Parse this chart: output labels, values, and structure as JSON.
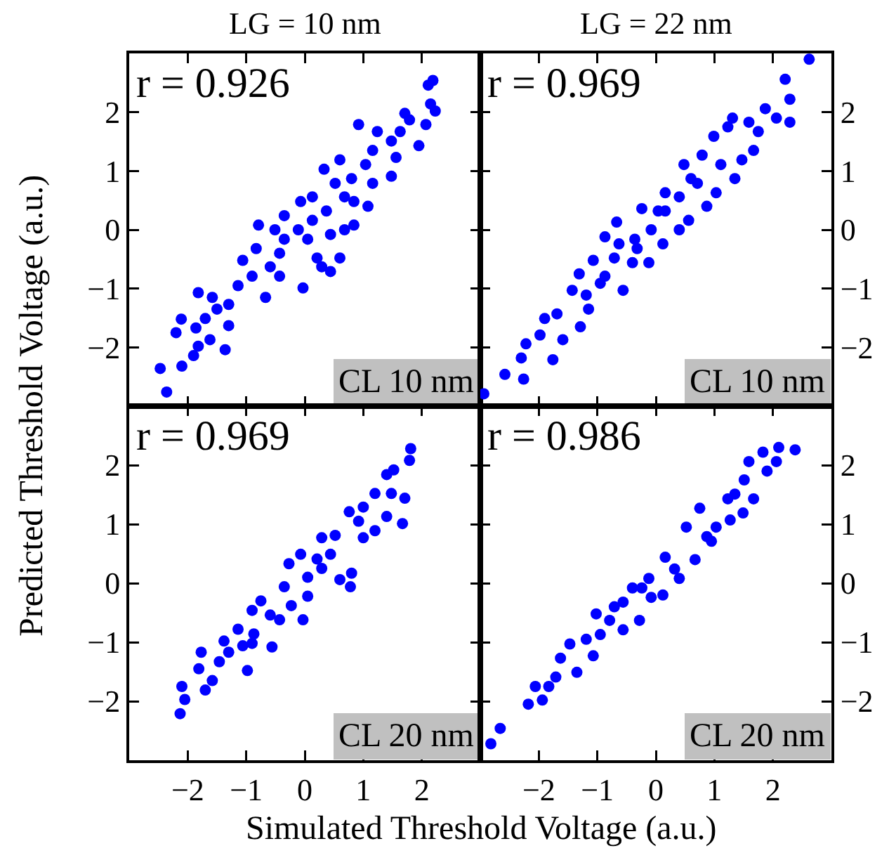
{
  "chart_data": [
    {
      "type": "scatter",
      "title": "LG = 10 nm",
      "ylabel": "Predicted Threshold Voltage (a.u.)",
      "color": "#0000ff",
      "marker": "circle",
      "xlim": [
        -3,
        3
      ],
      "ylim": [
        -3,
        3
      ],
      "xticks": [
        -2,
        -1,
        0,
        1,
        2
      ],
      "yticks": [
        -2,
        -1,
        0,
        1,
        2
      ],
      "tick_labels": "y",
      "annotations": [
        "r = 0.926",
        "CL 10 nm"
      ],
      "x": [
        -2.47,
        -2.36,
        -2.1,
        -2.2,
        -2.11,
        -1.9,
        -1.82,
        -1.36,
        -1.86,
        -1.62,
        -1.82,
        -1.58,
        -1.3,
        -1.3,
        -1.06,
        -0.9,
        -0.67,
        -0.79,
        -0.83,
        -0.51,
        -0.35,
        -0.43,
        -0.07,
        -0.03,
        -0.11,
        0.13,
        0.21,
        0.29,
        0.44,
        0.44,
        0.6,
        0.68,
        0.33,
        0.52,
        0.84,
        0.84,
        1.08,
        0.6,
        1.04,
        0.92,
        1.16,
        1.48,
        1.24,
        1.63,
        1.56,
        1.79,
        1.95,
        2.07,
        2.23,
        2.15,
        2.11,
        2.19,
        0.8,
        0.13,
        -0.35,
        -0.59,
        -1.14,
        -1.5,
        -1.7,
        -0.43,
        0.05,
        0.37,
        0.68,
        1.16,
        1.48,
        1.71
      ],
      "values": [
        -2.36,
        -2.76,
        -2.32,
        -1.75,
        -1.52,
        -2.14,
        -1.98,
        -2.04,
        -1.67,
        -1.87,
        -1.07,
        -1.15,
        -1.63,
        -1.27,
        -0.52,
        -0.79,
        -1.15,
        0.08,
        -0.32,
        0.0,
        0.24,
        -0.4,
        0.48,
        -0.99,
        0.0,
        0.16,
        -0.48,
        -0.63,
        -0.71,
        -0.08,
        -0.48,
        0.0,
        1.03,
        0.79,
        0.48,
        0.08,
        0.4,
        1.19,
        1.11,
        1.79,
        0.79,
        0.91,
        1.67,
        1.67,
        1.23,
        1.87,
        1.43,
        1.79,
        2.02,
        2.14,
        2.46,
        2.54,
        0.87,
        0.56,
        -0.16,
        -0.63,
        -0.95,
        -1.35,
        -1.51,
        -0.79,
        -0.16,
        0.32,
        0.56,
        1.35,
        1.51,
        1.98
      ]
    },
    {
      "type": "scatter",
      "title": "LG = 22 nm",
      "color": "#0000ff",
      "marker": "circle",
      "xlim": [
        -3,
        3
      ],
      "ylim": [
        -3,
        3
      ],
      "xticks": [
        -2,
        -1,
        0,
        1,
        2
      ],
      "yticks": [
        -2,
        -1,
        0,
        1,
        2
      ],
      "tick_labels": "y",
      "annotations": [
        "r = 0.969",
        "CL 10 nm"
      ],
      "x": [
        -2.94,
        -2.58,
        -2.26,
        -2.3,
        -2.22,
        -1.98,
        -1.9,
        -1.76,
        -1.59,
        -1.69,
        -1.29,
        -1.43,
        -1.31,
        -1.15,
        -1.07,
        -0.95,
        -0.87,
        -0.67,
        -0.56,
        -0.63,
        -0.4,
        -0.36,
        -0.24,
        -0.12,
        -0.08,
        0.12,
        0.16,
        0.4,
        0.56,
        0.48,
        0.6,
        0.87,
        0.79,
        1.03,
        0.99,
        1.23,
        1.35,
        1.47,
        1.31,
        1.59,
        1.67,
        1.87,
        2.06,
        2.29,
        2.29,
        2.21,
        2.62,
        0.4,
        0.16,
        -0.32,
        -0.71,
        -1.19,
        1.11,
        0.71,
        1.75,
        -0.87,
        0.04
      ],
      "values": [
        -2.79,
        -2.46,
        -2.54,
        -2.18,
        -1.94,
        -1.79,
        -1.51,
        -2.21,
        -1.87,
        -1.43,
        -1.65,
        -1.03,
        -0.75,
        -1.35,
        -0.52,
        -0.91,
        -0.12,
        0.13,
        -1.03,
        -0.24,
        -0.56,
        -0.16,
        0.36,
        -0.56,
        0.0,
        -0.24,
        0.63,
        0.0,
        0.16,
        1.11,
        0.87,
        0.4,
        1.27,
        0.63,
        1.59,
        1.75,
        0.87,
        1.19,
        1.9,
        1.83,
        1.35,
        2.06,
        1.9,
        1.83,
        2.22,
        2.56,
        2.9,
        0.56,
        0.32,
        -0.32,
        -0.48,
        -1.11,
        1.11,
        0.79,
        1.67,
        -0.79,
        0.32
      ]
    },
    {
      "type": "scatter",
      "xlabel": "Simulated Threshold Voltage (a.u.)",
      "color": "#0000ff",
      "marker": "circle",
      "xlim": [
        -3,
        3
      ],
      "ylim": [
        -3,
        3
      ],
      "xticks": [
        -2,
        -1,
        0,
        1,
        2
      ],
      "yticks": [
        -2,
        -1,
        0,
        1,
        2
      ],
      "annotations": [
        "r = 0.969",
        "CL 20 nm"
      ],
      "x": [
        -2.13,
        -2.1,
        -2.05,
        -1.81,
        -1.77,
        -1.7,
        -1.58,
        -1.46,
        -1.38,
        -1.14,
        -0.98,
        -1.06,
        -0.9,
        -0.87,
        -0.75,
        -0.56,
        -0.59,
        -0.35,
        -0.27,
        -0.23,
        -0.03,
        -0.07,
        0.05,
        0.21,
        0.29,
        0.6,
        0.78,
        0.8,
        0.52,
        0.76,
        1.0,
        0.92,
        1.2,
        1.2,
        1.4,
        1.4,
        1.52,
        1.67,
        1.71,
        1.79,
        1.81,
        1.48,
        0.29,
        -0.43,
        -1.3,
        0.05,
        1.0,
        -0.9,
        0.44
      ],
      "values": [
        -2.21,
        -1.75,
        -1.97,
        -1.45,
        -1.17,
        -1.81,
        -1.65,
        -1.33,
        -0.98,
        -0.78,
        -1.48,
        -1.06,
        -0.46,
        -0.86,
        -0.3,
        -1.08,
        -0.54,
        -0.06,
        0.33,
        -0.38,
        -0.62,
        0.49,
        -0.22,
        0.41,
        0.77,
        0.06,
        -0.06,
        0.17,
        0.81,
        1.21,
        0.77,
        1.05,
        0.89,
        1.52,
        1.13,
        1.84,
        1.92,
        1.01,
        1.44,
        2.08,
        2.28,
        1.52,
        0.25,
        -0.62,
        -1.17,
        0.1,
        1.29,
        -1.02,
        0.49
      ]
    },
    {
      "type": "scatter",
      "color": "#0000ff",
      "marker": "circle",
      "xlim": [
        -3,
        3
      ],
      "ylim": [
        -3,
        3
      ],
      "xticks": [
        -2,
        -1,
        0,
        1,
        2
      ],
      "yticks": [
        -2,
        -1,
        0,
        1,
        2
      ],
      "annotations": [
        "r = 0.986",
        "CL 20 nm"
      ],
      "x": [
        -2.82,
        -2.66,
        -2.18,
        -2.06,
        -1.94,
        -1.71,
        -1.63,
        -1.35,
        -1.47,
        -1.19,
        -1.07,
        -1.02,
        -0.79,
        -0.71,
        -0.56,
        -0.4,
        -0.28,
        -0.12,
        0.12,
        0.16,
        0.4,
        0.52,
        0.67,
        0.75,
        0.95,
        1.03,
        1.23,
        1.27,
        1.49,
        1.51,
        1.67,
        1.59,
        1.83,
        1.9,
        2.1,
        2.38,
        2.06,
        -0.08,
        0.32,
        -0.95,
        -0.56,
        -1.83,
        0.87,
        1.35,
        -0.24
      ],
      "values": [
        -2.72,
        -2.46,
        -2.05,
        -1.75,
        -1.98,
        -1.59,
        -1.27,
        -1.51,
        -1.03,
        -0.95,
        -1.23,
        -0.52,
        -0.63,
        -0.4,
        -0.79,
        -0.08,
        -0.63,
        0.08,
        -0.2,
        0.44,
        0.08,
        0.95,
        0.4,
        1.27,
        0.71,
        0.95,
        1.43,
        1.07,
        1.19,
        1.75,
        1.43,
        2.06,
        2.22,
        1.9,
        2.3,
        2.26,
        2.06,
        -0.24,
        0.24,
        -0.87,
        -0.32,
        -1.75,
        0.79,
        1.51,
        -0.08
      ]
    }
  ]
}
